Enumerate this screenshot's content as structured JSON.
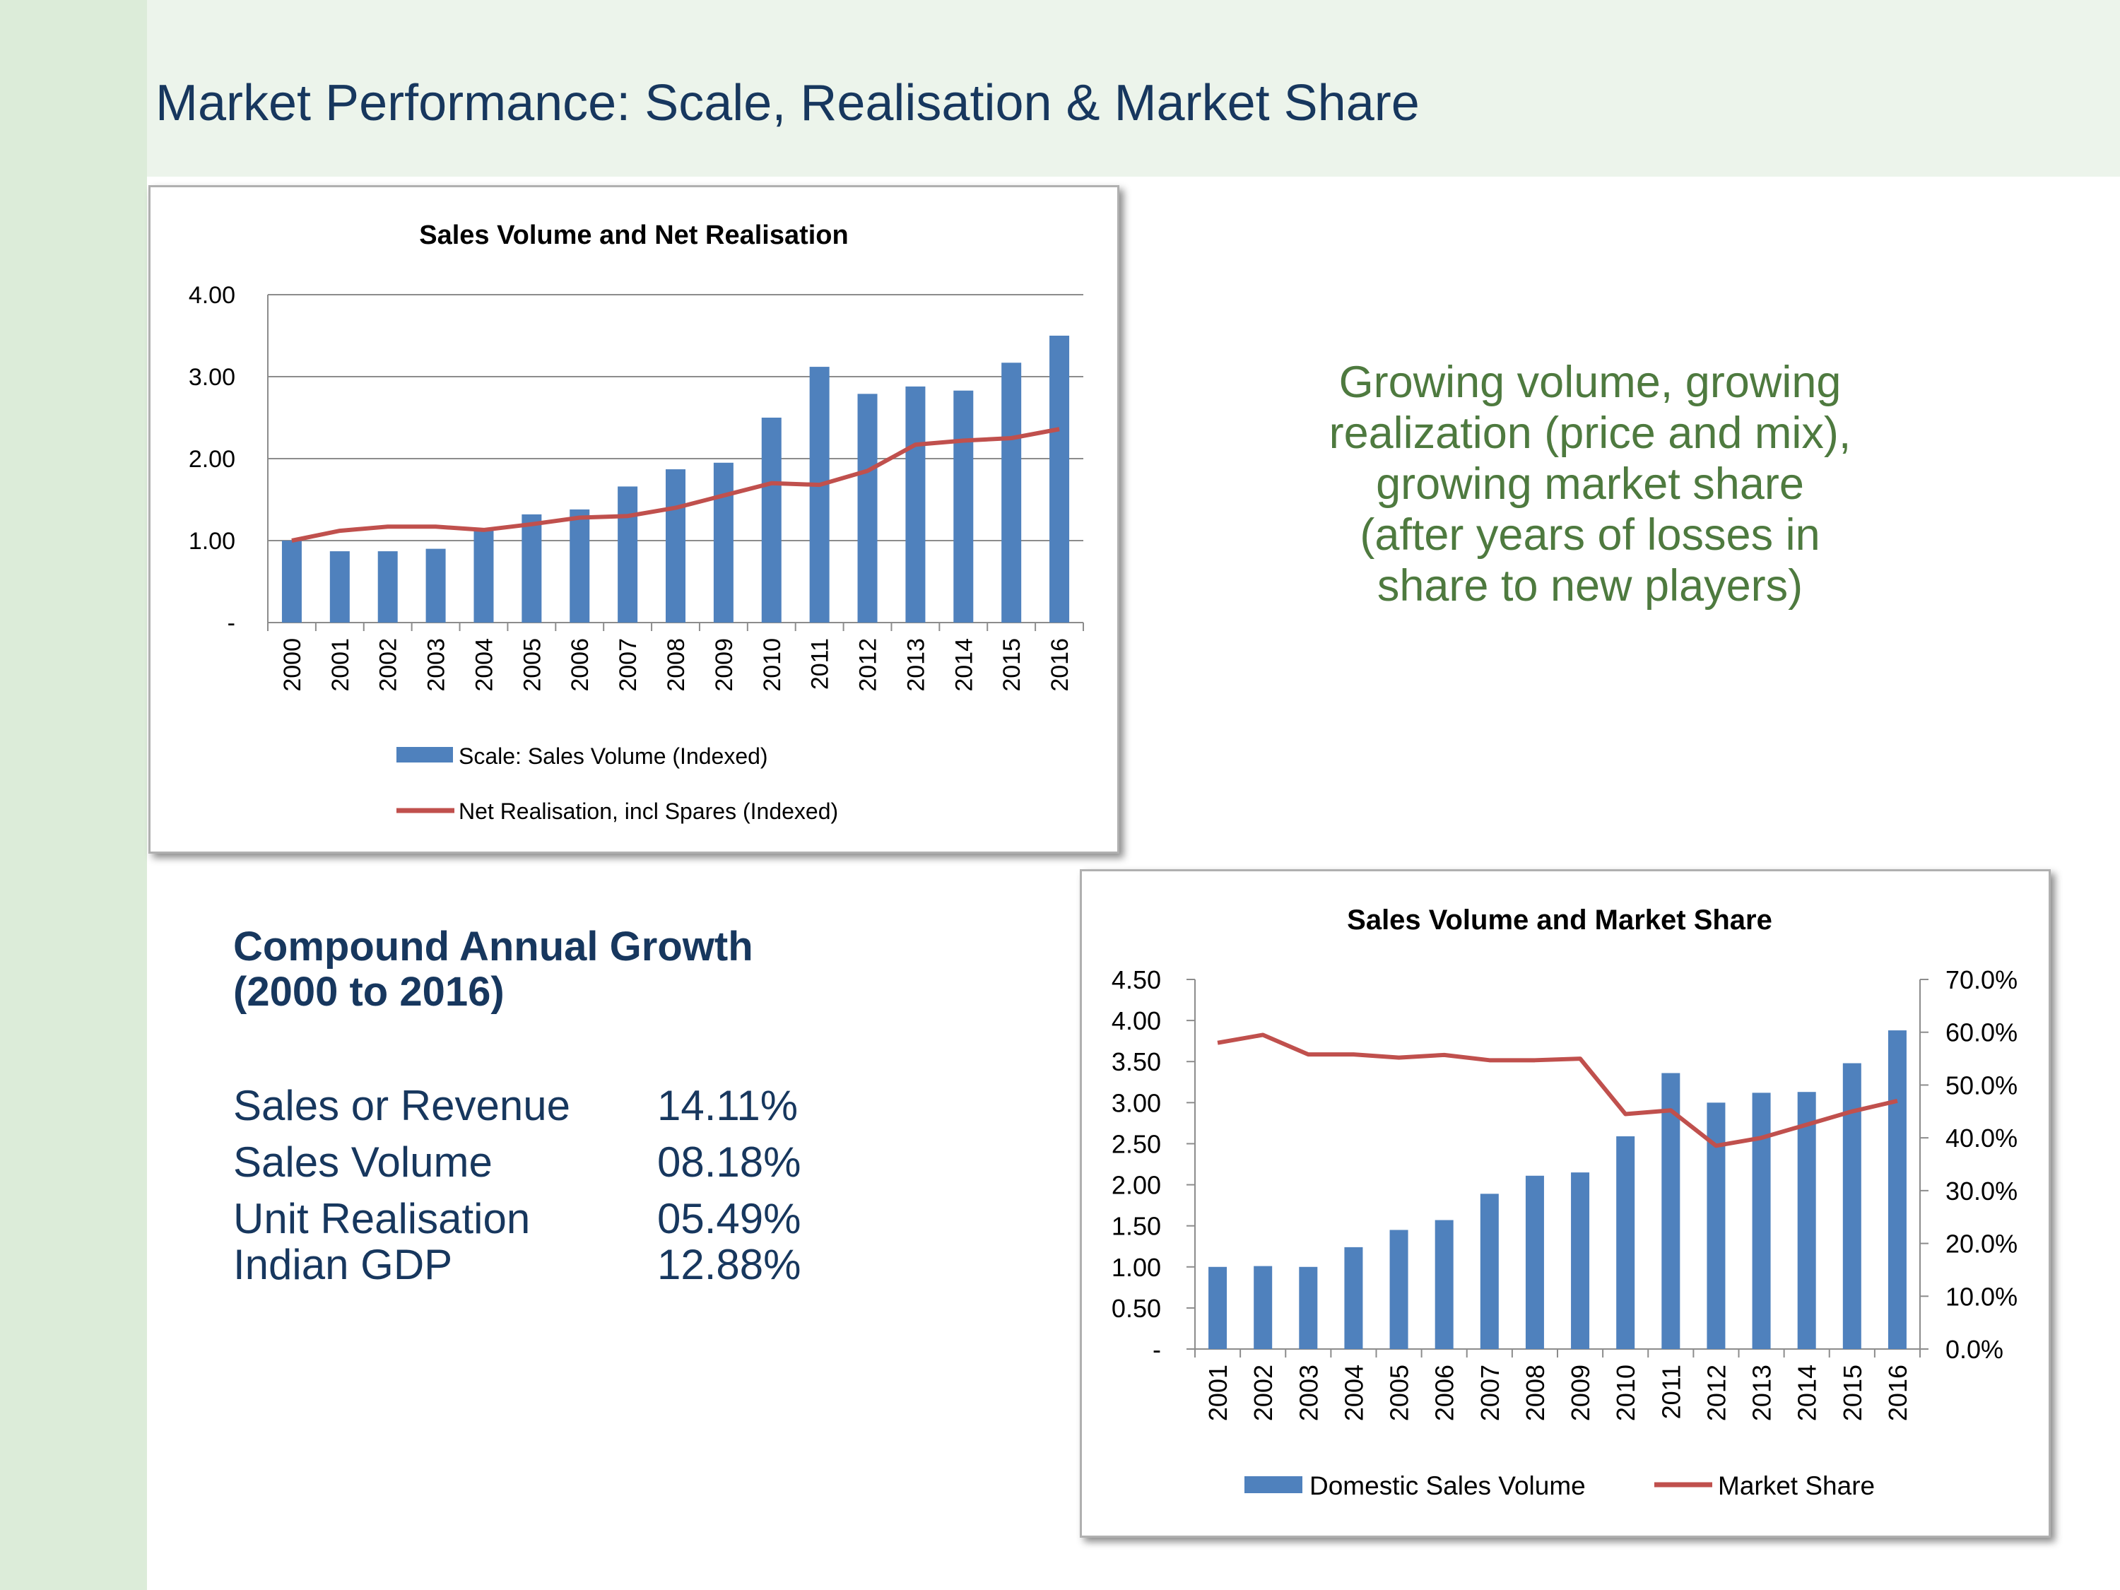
{
  "slide": {
    "title": "Market Performance: Scale, Realisation & Market Share"
  },
  "callout": {
    "lines": [
      "Growing volume, growing",
      "realization (price and mix),",
      "growing market share",
      "(after years of losses in",
      "share to new players)"
    ],
    "color": "#4e7a3f"
  },
  "cagr": {
    "heading_line1": "Compound Annual Growth",
    "heading_line2": "(2000 to 2016)",
    "rows": [
      {
        "label": "Sales or Revenue",
        "value": "14.11%"
      },
      {
        "label": "Sales Volume",
        "value": "08.18%"
      },
      {
        "label": "Unit Realisation",
        "value": "05.49%"
      },
      {
        "label": "Indian GDP",
        "value": "12.88%"
      }
    ]
  },
  "colors": {
    "bar": "#4f81bd",
    "line": "#c0504d",
    "title": "#17375e"
  },
  "chart_data": [
    {
      "type": "bar",
      "title": "Sales Volume and Net Realisation",
      "categories": [
        "2000",
        "2001",
        "2002",
        "2003",
        "2004",
        "2005",
        "2006",
        "2007",
        "2008",
        "2009",
        "2010",
        "2011",
        "2012",
        "2013",
        "2014",
        "2015",
        "2016"
      ],
      "series": [
        {
          "name": "Scale: Sales Volume (Indexed)",
          "type": "bar",
          "values": [
            1.0,
            0.87,
            0.87,
            0.9,
            1.13,
            1.32,
            1.38,
            1.66,
            1.87,
            1.95,
            2.5,
            3.12,
            2.79,
            2.88,
            2.83,
            3.17,
            3.5
          ]
        },
        {
          "name": "Net Realisation, incl Spares (Indexed)",
          "type": "line",
          "values": [
            1.0,
            1.12,
            1.17,
            1.17,
            1.13,
            1.2,
            1.28,
            1.3,
            1.4,
            1.55,
            1.7,
            1.68,
            1.85,
            2.17,
            2.22,
            2.25,
            2.36
          ]
        }
      ],
      "ylim": [
        0,
        4
      ],
      "yticks": [
        "-",
        "1.00",
        "2.00",
        "3.00",
        "4.00"
      ],
      "grid": true,
      "legend": "bottom"
    },
    {
      "type": "bar",
      "title": "Sales Volume and Market Share",
      "categories": [
        "2001",
        "2002",
        "2003",
        "2004",
        "2005",
        "2006",
        "2007",
        "2008",
        "2009",
        "2010",
        "2011",
        "2012",
        "2013",
        "2014",
        "2015",
        "2016"
      ],
      "series": [
        {
          "name": "Domestic Sales Volume",
          "type": "bar",
          "axis": "left",
          "values": [
            1.0,
            1.01,
            1.0,
            1.24,
            1.45,
            1.57,
            1.89,
            2.11,
            2.15,
            2.59,
            3.36,
            3.0,
            3.12,
            3.13,
            3.48,
            3.88
          ]
        },
        {
          "name": "Market Share",
          "type": "line",
          "axis": "right",
          "values": [
            58.0,
            59.5,
            55.8,
            55.8,
            55.2,
            55.7,
            54.7,
            54.7,
            55.0,
            44.5,
            45.2,
            38.5,
            40.0,
            42.5,
            45.0,
            47.0
          ]
        }
      ],
      "ylim_left": [
        0,
        4.5
      ],
      "yticks_left": [
        "-",
        "0.50",
        "1.00",
        "1.50",
        "2.00",
        "2.50",
        "3.00",
        "3.50",
        "4.00",
        "4.50"
      ],
      "ylim_right": [
        0,
        70
      ],
      "yticks_right": [
        "0.0%",
        "10.0%",
        "20.0%",
        "30.0%",
        "40.0%",
        "50.0%",
        "60.0%",
        "70.0%"
      ],
      "grid": false,
      "legend": "bottom"
    }
  ]
}
